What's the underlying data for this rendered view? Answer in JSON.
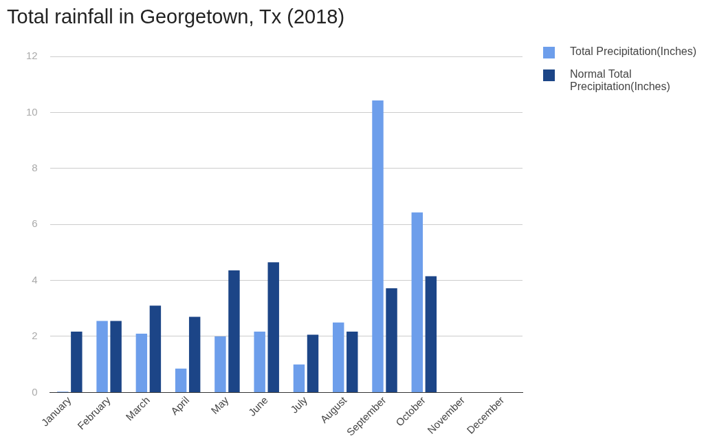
{
  "chart_data": {
    "type": "bar",
    "title": "Total rainfall in Georgetown, Tx (2018)",
    "categories": [
      "January",
      "February",
      "March",
      "April",
      "May",
      "June",
      "July",
      "August",
      "September",
      "October",
      "November",
      "December"
    ],
    "series": [
      {
        "name": "Total Precipitation(Inches)",
        "color": "#6d9eeb",
        "values": [
          0.03,
          2.55,
          2.1,
          0.85,
          2.0,
          2.17,
          1.0,
          2.5,
          10.43,
          6.43,
          null,
          null
        ]
      },
      {
        "name": "Normal Total Precipitation(Inches)",
        "color": "#1c4587",
        "values": [
          2.17,
          2.55,
          3.1,
          2.7,
          4.36,
          4.65,
          2.06,
          2.17,
          3.72,
          4.15,
          null,
          null
        ]
      }
    ],
    "ylim": [
      0,
      12
    ],
    "yticks": [
      0,
      2,
      4,
      6,
      8,
      10,
      12
    ],
    "grid": "y",
    "legend": "top right"
  }
}
